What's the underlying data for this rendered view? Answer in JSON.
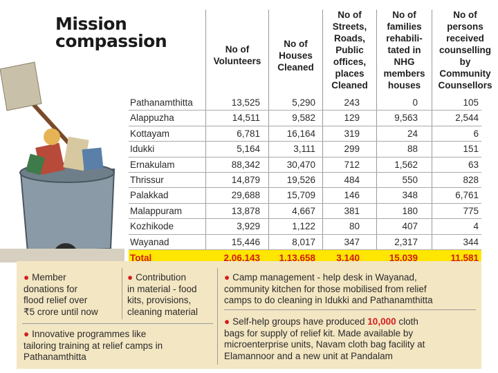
{
  "title": {
    "line1": "Mission",
    "line2": "compassion"
  },
  "colors": {
    "total_band": "#ffe600",
    "total_text": "#d11a1a",
    "bullet": "#d21e1e",
    "info_bg": "#f3e6c2"
  },
  "headers": [
    "No of\nVolunteers",
    "No of\nHouses\nCleaned",
    "No of\nStreets,\nRoads,\nPublic\noffices,\nplaces\nCleaned",
    "No of\nfamilies\nrehabili-\ntated in\nNHG\nmembers\nhouses",
    "No of\npersons\nreceived\ncounselling\nby\nCommunity\nCounsellors"
  ],
  "rows": [
    {
      "district": "Pathanamthitta",
      "values": [
        "13,525",
        "5,290",
        "243",
        "0",
        "105"
      ]
    },
    {
      "district": "Alappuzha",
      "values": [
        "14,511",
        "9,582",
        "129",
        "9,563",
        "2,544"
      ]
    },
    {
      "district": "Kottayam",
      "values": [
        "6,781",
        "16,164",
        "319",
        "24",
        "6"
      ]
    },
    {
      "district": "Idukki",
      "values": [
        "5,164",
        "3,111",
        "299",
        "88",
        "151"
      ]
    },
    {
      "district": "Ernakulam",
      "values": [
        "88,342",
        "30,470",
        "712",
        "1,562",
        "63"
      ]
    },
    {
      "district": "Thrissur",
      "values": [
        "14,879",
        "19,526",
        "484",
        "550",
        "828"
      ]
    },
    {
      "district": "Palakkad",
      "values": [
        "29,688",
        "15,709",
        "146",
        "348",
        "6,761"
      ]
    },
    {
      "district": "Malappuram",
      "values": [
        "13,878",
        "4,667",
        "381",
        "180",
        "775"
      ]
    },
    {
      "district": "Kozhikode",
      "values": [
        "3,929",
        "1,122",
        "80",
        "407",
        "4"
      ]
    },
    {
      "district": "Wayanad",
      "values": [
        "15,446",
        "8,017",
        "347",
        "2,317",
        "344"
      ]
    }
  ],
  "total": {
    "label": "Total",
    "values": [
      "2,06,143",
      "1,13,658",
      "3,140",
      "15,039",
      "11,581"
    ]
  },
  "notes": {
    "member_donations": "Member\ndonations for\nflood relief over\n₹5 crore until now",
    "contribution": "Contribution\nin material - food\nkits, provisions,\ncleaning material",
    "camp_management": "Camp management - help desk in Wayanad,\ncommunity kitchen for those mobilised from relief\ncamps to do cleaning in Idukki and Pathanamthitta",
    "shg_prefix": "Self-help groups have produced ",
    "shg_highlight": "10,000",
    "shg_suffix": " cloth\nbags for supply of relief kit. Made available by\nmicroenterprise units, Navam cloth bag facility at\nElamannoor and a new unit at Pandalam",
    "innovative": "Innovative programmes like\ntailoring training at relief camps in\nPathanamthitta"
  }
}
